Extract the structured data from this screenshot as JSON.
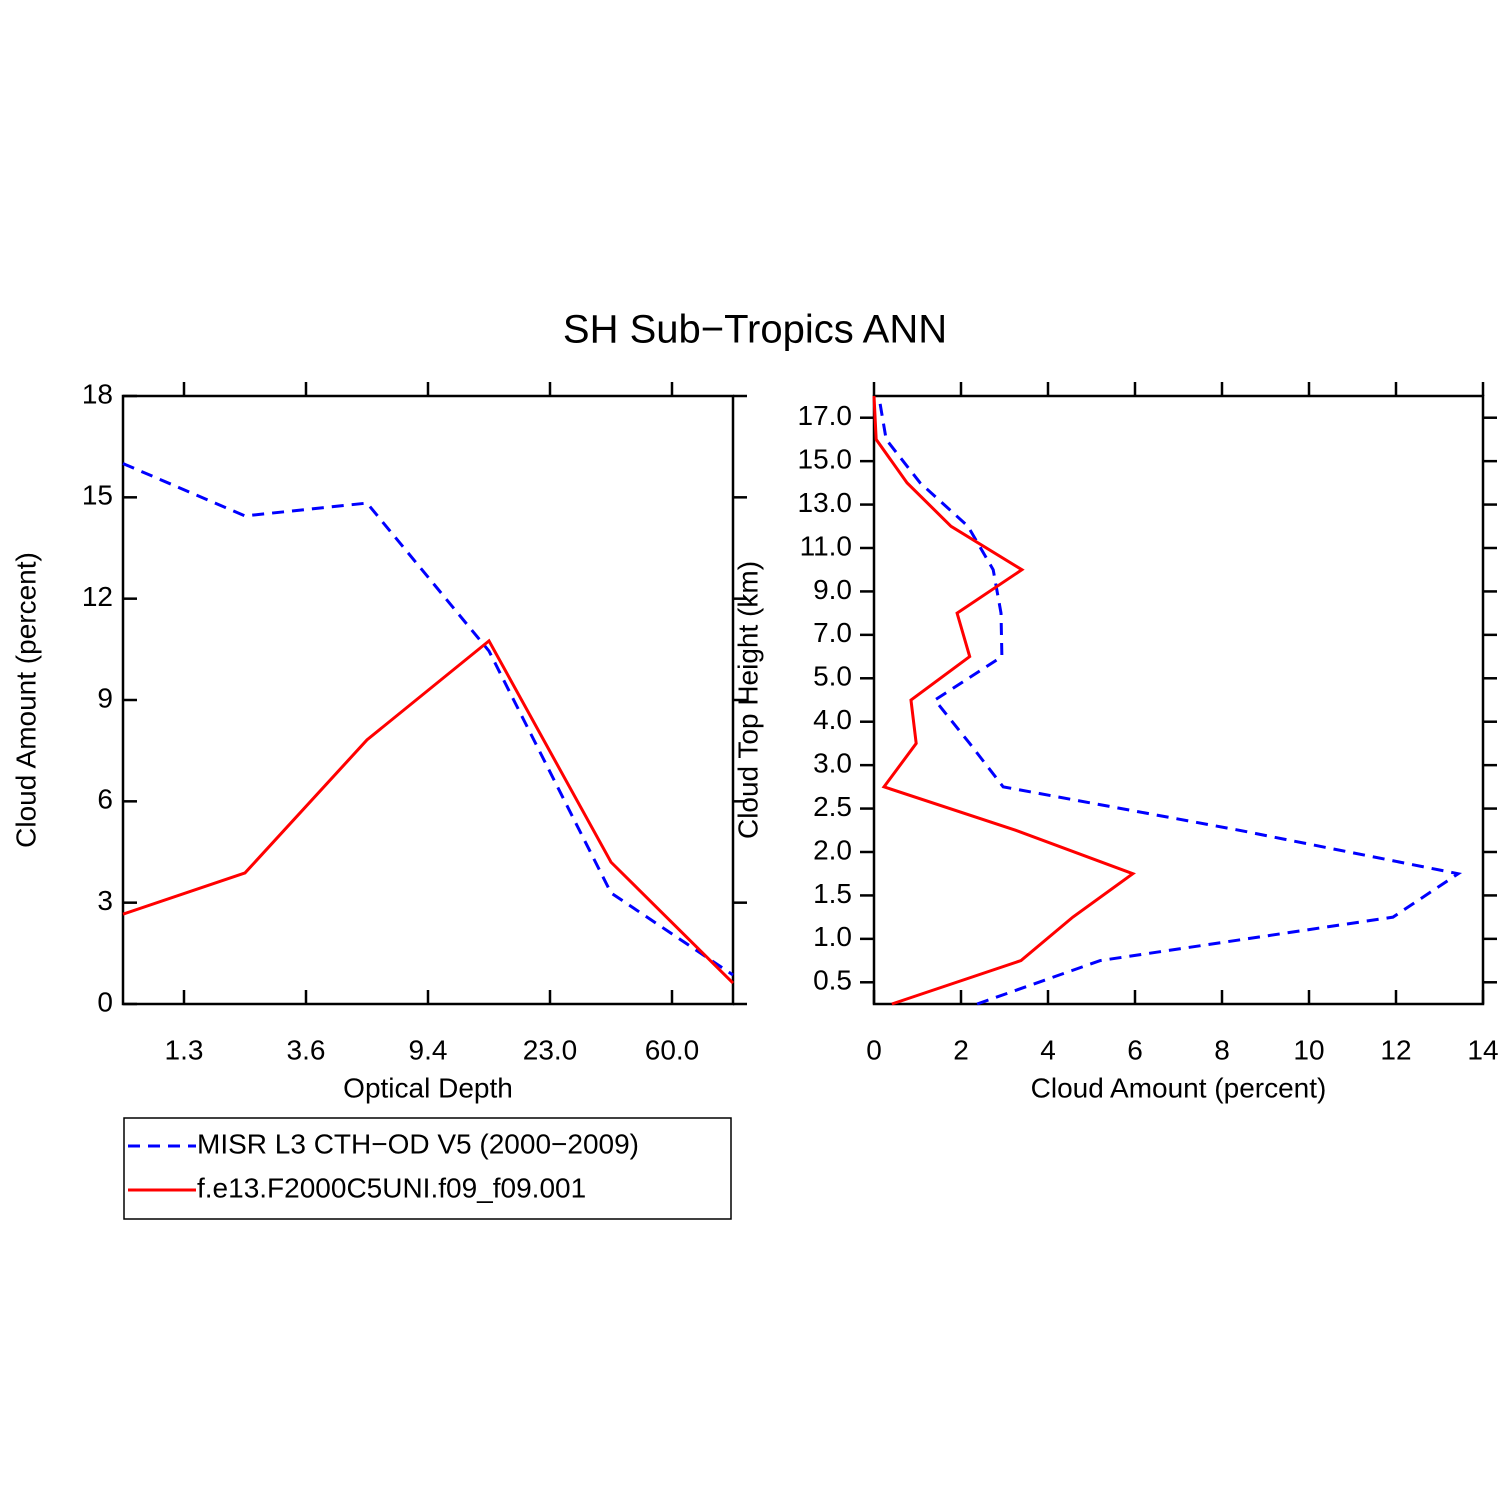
{
  "title": "SH Sub−Tropics ANN",
  "chart_data": [
    {
      "type": "line",
      "xlabel": "Optical Depth",
      "ylabel": "Cloud Amount (percent)",
      "x": [
        0,
        1,
        2,
        3,
        4,
        5
      ],
      "xlim": [
        0,
        5
      ],
      "xticks": [
        {
          "value": 0.5,
          "label": "1.3"
        },
        {
          "value": 1.5,
          "label": "3.6"
        },
        {
          "value": 2.5,
          "label": "9.4"
        },
        {
          "value": 3.5,
          "label": "23.0"
        },
        {
          "value": 4.5,
          "label": "60.0"
        }
      ],
      "ylim": [
        0,
        18
      ],
      "yticks": [
        0,
        3,
        6,
        9,
        12,
        15,
        18
      ],
      "series": [
        {
          "name": "MISR L3 CTH−OD V5 (2000−2009)",
          "color": "#0000ff",
          "linestyle": "dashed",
          "values": [
            16.0,
            14.45,
            14.83,
            10.45,
            3.29,
            0.86
          ]
        },
        {
          "name": "f.e13.F2000C5UNI.f09_f09.001",
          "color": "#ff0000",
          "linestyle": "solid",
          "values": [
            2.66,
            3.88,
            7.82,
            10.75,
            4.2,
            0.62
          ]
        }
      ]
    },
    {
      "type": "line",
      "xlabel": "Cloud Amount (percent)",
      "ylabel": "Cloud Top Height (km)",
      "y": [
        0,
        1,
        2,
        3,
        4,
        5,
        6,
        7,
        8,
        9,
        10,
        11,
        12,
        13,
        14
      ],
      "ylim": [
        0,
        14
      ],
      "yticks": [
        {
          "value": 0.5,
          "label": "0.5"
        },
        {
          "value": 1.5,
          "label": "1.0"
        },
        {
          "value": 2.5,
          "label": "1.5"
        },
        {
          "value": 3.5,
          "label": "2.0"
        },
        {
          "value": 4.5,
          "label": "2.5"
        },
        {
          "value": 5.5,
          "label": "3.0"
        },
        {
          "value": 6.5,
          "label": "4.0"
        },
        {
          "value": 7.5,
          "label": "5.0"
        },
        {
          "value": 8.5,
          "label": "7.0"
        },
        {
          "value": 9.5,
          "label": "9.0"
        },
        {
          "value": 10.5,
          "label": "11.0"
        },
        {
          "value": 11.5,
          "label": "13.0"
        },
        {
          "value": 12.5,
          "label": "15.0"
        },
        {
          "value": 13.5,
          "label": "17.0"
        }
      ],
      "xlim": [
        0,
        14
      ],
      "xticks": [
        0,
        2,
        4,
        6,
        8,
        10,
        12,
        14
      ],
      "series": [
        {
          "color": "#0000ff",
          "linestyle": "dashed",
          "values": [
            2.37,
            5.2,
            11.93,
            13.43,
            8.4,
            2.97,
            2.2,
            1.4,
            2.94,
            2.92,
            2.74,
            2.16,
            1.06,
            0.28,
            0.11
          ]
        },
        {
          "color": "#ff0000",
          "linestyle": "solid",
          "values": [
            0.41,
            3.38,
            4.57,
            5.95,
            3.26,
            0.23,
            0.97,
            0.85,
            2.2,
            1.91,
            3.4,
            1.77,
            0.76,
            0.05,
            0.0
          ]
        }
      ]
    }
  ]
}
